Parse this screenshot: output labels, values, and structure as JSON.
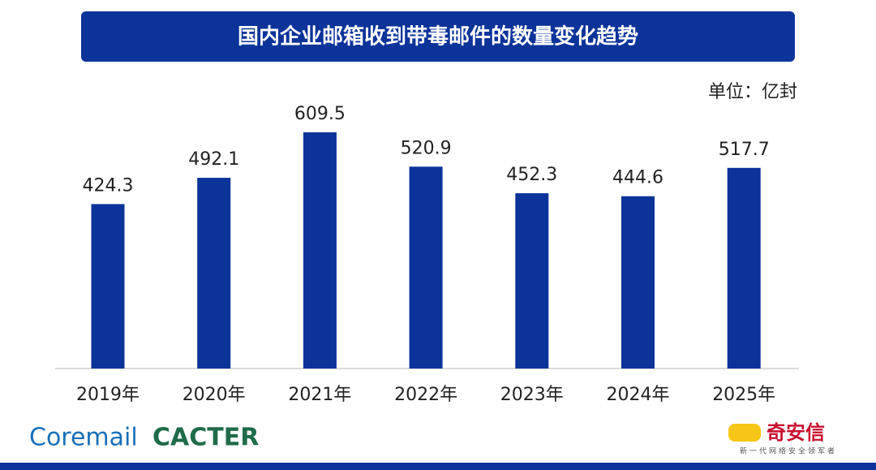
{
  "chart_data": {
    "type": "bar",
    "title": "国内企业邮箱收到带毒邮件的数量变化趋势",
    "unit": "单位：亿封",
    "categories": [
      "2019年",
      "2020年",
      "2021年",
      "2022年",
      "2023年",
      "2024年",
      "2025年"
    ],
    "values": [
      424.3,
      492.1,
      609.5,
      520.9,
      452.3,
      444.6,
      517.7
    ],
    "color": "#0b3399"
  },
  "logos": {
    "left_1": "Coremail",
    "left_2": "CACTER",
    "right_name": "奇安信",
    "right_slogan": "新一代网络安全领军者"
  }
}
